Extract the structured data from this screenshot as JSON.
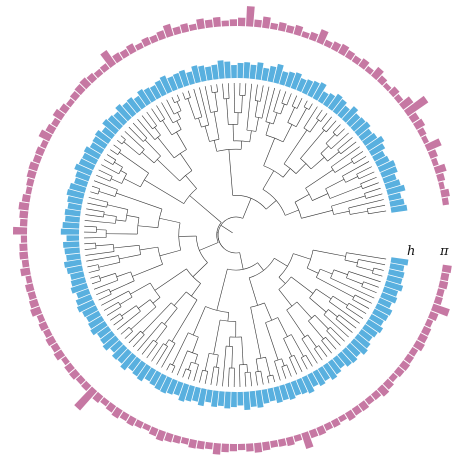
{
  "labels": {
    "inner_ring": "h",
    "outer_ring": "π"
  },
  "colors": {
    "inner_ring": "#59b0df",
    "outer_ring": "#c678a3",
    "tree": "#333333"
  },
  "tips": [
    {
      "h": 0.62,
      "pi": 0.22
    },
    {
      "h": 0.55,
      "pi": 0.3
    },
    {
      "h": 0.48,
      "pi": 0.18
    },
    {
      "h": 0.7,
      "pi": 0.26
    },
    {
      "h": 0.58,
      "pi": 0.4
    },
    {
      "h": 0.5,
      "pi": 0.2
    },
    {
      "h": 0.64,
      "pi": 0.28
    },
    {
      "h": 0.66,
      "pi": 0.55
    },
    {
      "h": 0.52,
      "pi": 0.19
    },
    {
      "h": 0.46,
      "pi": 0.24
    },
    {
      "h": 0.6,
      "pi": 0.35
    },
    {
      "h": 0.72,
      "pi": 0.3
    },
    {
      "h": 0.56,
      "pi": 0.88
    },
    {
      "h": 0.5,
      "pi": 0.45
    },
    {
      "h": 0.62,
      "pi": 0.22
    },
    {
      "h": 0.58,
      "pi": 0.3
    },
    {
      "h": 0.54,
      "pi": 0.18
    },
    {
      "h": 0.68,
      "pi": 0.26
    },
    {
      "h": 0.48,
      "pi": 0.4
    },
    {
      "h": 0.6,
      "pi": 0.2
    },
    {
      "h": 0.66,
      "pi": 0.32
    },
    {
      "h": 0.52,
      "pi": 0.24
    },
    {
      "h": 0.44,
      "pi": 0.28
    },
    {
      "h": 0.7,
      "pi": 0.36
    },
    {
      "h": 0.62,
      "pi": 0.3
    },
    {
      "h": 0.56,
      "pi": 0.22
    },
    {
      "h": 0.5,
      "pi": 0.5
    },
    {
      "h": 0.64,
      "pi": 0.28
    },
    {
      "h": 0.58,
      "pi": 0.2
    },
    {
      "h": 0.52,
      "pi": 0.34
    },
    {
      "h": 0.74,
      "pi": 0.26
    },
    {
      "h": 0.6,
      "pi": 0.3
    },
    {
      "h": 0.48,
      "pi": 0.22
    },
    {
      "h": 0.66,
      "pi": 0.4
    },
    {
      "h": 0.54,
      "pi": 0.26
    },
    {
      "h": 0.62,
      "pi": 0.72
    },
    {
      "h": 0.58,
      "pi": 0.3
    },
    {
      "h": 0.5,
      "pi": 0.24
    },
    {
      "h": 0.64,
      "pi": 0.2
    },
    {
      "h": 0.7,
      "pi": 0.34
    },
    {
      "h": 0.56,
      "pi": 0.28
    },
    {
      "h": 0.52,
      "pi": 0.36
    },
    {
      "h": 0.6,
      "pi": 0.22
    },
    {
      "h": 0.66,
      "pi": 0.3
    },
    {
      "h": 0.48,
      "pi": 0.26
    },
    {
      "h": 0.62,
      "pi": 0.44
    },
    {
      "h": 0.58,
      "pi": 0.3
    },
    {
      "h": 0.54,
      "pi": 0.24
    },
    {
      "h": 0.68,
      "pi": 0.28
    },
    {
      "h": 0.6,
      "pi": 0.2
    },
    {
      "h": 0.52,
      "pi": 0.32
    },
    {
      "h": 0.56,
      "pi": 0.26
    },
    {
      "h": 0.64,
      "pi": 0.3
    },
    {
      "h": 0.5,
      "pi": 0.6
    },
    {
      "h": 0.62,
      "pi": 0.24
    },
    {
      "h": 0.58,
      "pi": 0.22
    },
    {
      "h": 0.7,
      "pi": 0.28
    },
    {
      "h": 0.54,
      "pi": 0.34
    },
    {
      "h": 0.6,
      "pi": 0.3
    },
    {
      "h": 0.66,
      "pi": 0.26
    },
    {
      "h": 0.48,
      "pi": 0.2
    },
    {
      "h": 0.62,
      "pi": 0.28
    },
    {
      "h": 0.56,
      "pi": 0.36
    },
    {
      "h": 0.52,
      "pi": 0.24
    },
    {
      "h": 0.64,
      "pi": 0.3
    },
    {
      "h": 0.58,
      "pi": 0.42
    },
    {
      "h": 0.6,
      "pi": 0.22
    },
    {
      "h": 0.68,
      "pi": 0.28
    },
    {
      "h": 0.54,
      "pi": 0.26
    },
    {
      "h": 0.5,
      "pi": 0.32
    },
    {
      "h": 0.62,
      "pi": 0.3
    },
    {
      "h": 0.66,
      "pi": 0.24
    },
    {
      "h": 0.58,
      "pi": 0.2
    },
    {
      "h": 0.52,
      "pi": 0.28
    },
    {
      "h": 0.6,
      "pi": 0.36
    },
    {
      "h": 0.56,
      "pi": 0.3
    },
    {
      "h": 0.64,
      "pi": 0.26
    },
    {
      "h": 0.7,
      "pi": 0.5
    },
    {
      "h": 0.48,
      "pi": 0.22
    },
    {
      "h": 0.62,
      "pi": 0.28
    },
    {
      "h": 0.58,
      "pi": 0.3
    },
    {
      "h": 0.54,
      "pi": 0.24
    },
    {
      "h": 0.66,
      "pi": 0.34
    },
    {
      "h": 0.6,
      "pi": 0.2
    },
    {
      "h": 0.52,
      "pi": 0.28
    },
    {
      "h": 0.56,
      "pi": 0.26
    },
    {
      "h": 0.64,
      "pi": 0.3
    },
    {
      "h": 0.5,
      "pi": 0.36
    },
    {
      "h": 0.62,
      "pi": 0.22
    },
    {
      "h": 0.68,
      "pi": 0.28
    },
    {
      "h": 0.58,
      "pi": 0.24
    },
    {
      "h": 0.54,
      "pi": 0.3
    },
    {
      "h": 0.6,
      "pi": 0.26
    },
    {
      "h": 0.66,
      "pi": 0.32
    },
    {
      "h": 0.52,
      "pi": 0.2
    },
    {
      "h": 0.56,
      "pi": 0.28
    },
    {
      "h": 0.64,
      "pi": 0.3
    },
    {
      "h": 0.48,
      "pi": 0.24
    },
    {
      "h": 0.62,
      "pi": 0.26
    },
    {
      "h": 0.58,
      "pi": 0.92
    },
    {
      "h": 0.7,
      "pi": 0.3
    },
    {
      "h": 0.54,
      "pi": 0.22
    },
    {
      "h": 0.6,
      "pi": 0.28
    },
    {
      "h": 0.66,
      "pi": 0.34
    },
    {
      "h": 0.5,
      "pi": 0.26
    },
    {
      "h": 0.56,
      "pi": 0.3
    },
    {
      "h": 0.62,
      "pi": 0.24
    },
    {
      "h": 0.64,
      "pi": 0.2
    },
    {
      "h": 0.58,
      "pi": 0.28
    },
    {
      "h": 0.52,
      "pi": 0.36
    },
    {
      "h": 0.68,
      "pi": 0.3
    },
    {
      "h": 0.6,
      "pi": 0.26
    },
    {
      "h": 0.54,
      "pi": 0.22
    },
    {
      "h": 0.66,
      "pi": 0.3
    },
    {
      "h": 0.48,
      "pi": 0.28
    },
    {
      "h": 0.62,
      "pi": 0.24
    },
    {
      "h": 0.56,
      "pi": 0.4
    },
    {
      "h": 0.64,
      "pi": 0.3
    },
    {
      "h": 0.58,
      "pi": 0.26
    },
    {
      "h": 0.52,
      "pi": 0.22
    },
    {
      "h": 0.7,
      "pi": 0.28
    },
    {
      "h": 0.6,
      "pi": 0.34
    },
    {
      "h": 0.66,
      "pi": 0.3
    },
    {
      "h": 0.54,
      "pi": 0.24
    },
    {
      "h": 0.5,
      "pi": 0.26
    },
    {
      "h": 0.62,
      "pi": 0.3
    },
    {
      "h": 0.58,
      "pi": 0.22
    },
    {
      "h": 0.64,
      "pi": 0.58
    },
    {
      "h": 0.56,
      "pi": 0.28
    },
    {
      "h": 0.6,
      "pi": 0.3
    },
    {
      "h": 0.68,
      "pi": 0.24
    },
    {
      "h": 0.52,
      "pi": 0.26
    },
    {
      "h": 0.62,
      "pi": 0.2
    },
    {
      "h": 0.54,
      "pi": 0.32
    },
    {
      "h": 0.66,
      "pi": 0.28
    },
    {
      "h": 0.58,
      "pi": 0.3
    },
    {
      "h": 0.48,
      "pi": 0.24
    },
    {
      "h": 0.6,
      "pi": 0.26
    },
    {
      "h": 0.64,
      "pi": 0.36
    },
    {
      "h": 0.56,
      "pi": 0.3
    },
    {
      "h": 0.7,
      "pi": 0.22
    },
    {
      "h": 0.62,
      "pi": 0.28
    },
    {
      "h": 0.52,
      "pi": 0.3
    },
    {
      "h": 0.58,
      "pi": 0.26
    },
    {
      "h": 0.66,
      "pi": 0.24
    },
    {
      "h": 0.54,
      "pi": 0.34
    },
    {
      "h": 0.6,
      "pi": 0.3
    },
    {
      "h": 0.64,
      "pi": 0.28
    },
    {
      "h": 0.5,
      "pi": 0.22
    },
    {
      "h": 0.62,
      "pi": 0.3
    },
    {
      "h": 0.56,
      "pi": 0.62
    },
    {
      "h": 0.68,
      "pi": 0.26
    },
    {
      "h": 0.58,
      "pi": 0.24
    },
    {
      "h": 0.6,
      "pi": 0.3
    },
    {
      "h": 0.54,
      "pi": 0.28
    },
    {
      "h": 0.66,
      "pi": 0.32
    }
  ]
}
